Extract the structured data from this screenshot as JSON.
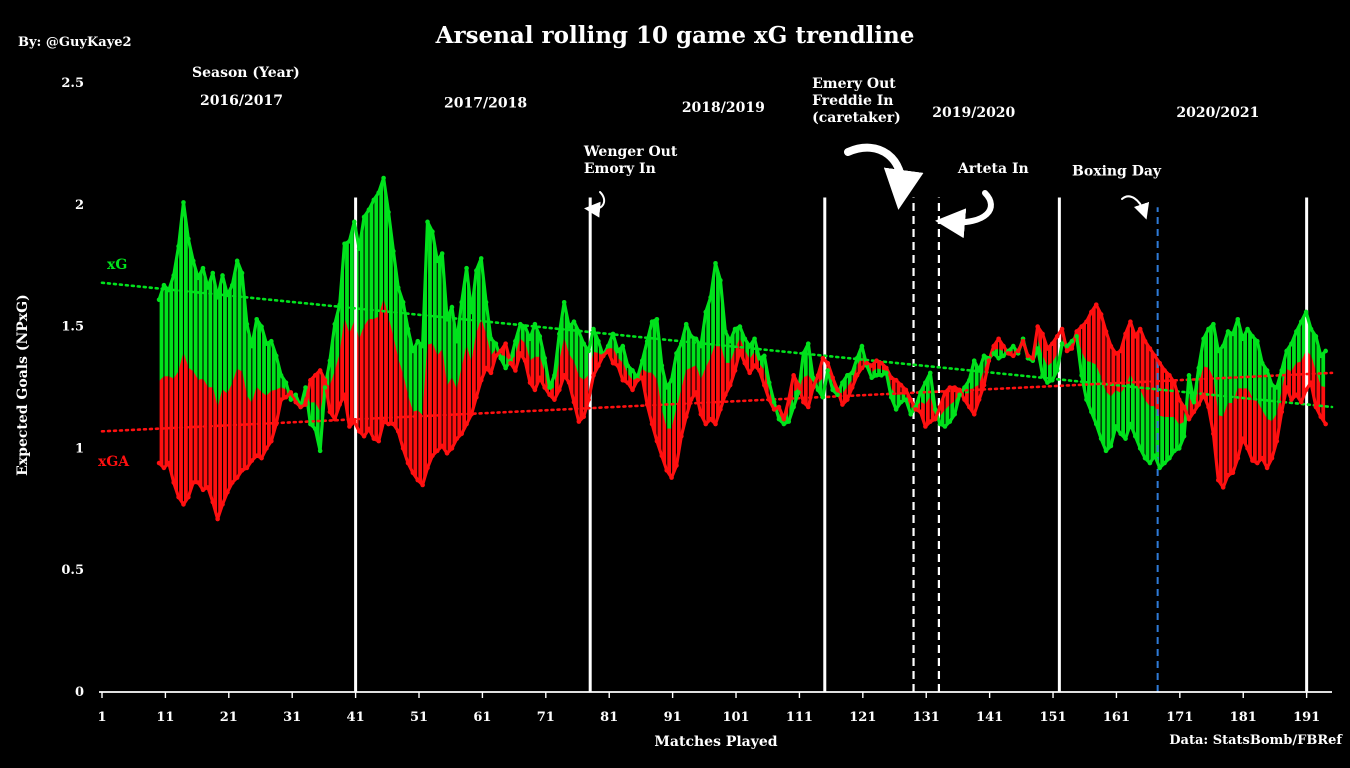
{
  "chart_data": {
    "type": "line",
    "title": "Arsenal rolling 10 game xG trendline",
    "byline": "By: @GuyKaye2",
    "source": "Data: StatsBomb/FBRef",
    "xlabel": "Matches Played",
    "ylabel": "Expected Goals (NPxG)",
    "xlim": [
      1,
      195
    ],
    "ylim": [
      0,
      2.5
    ],
    "x_ticks": [
      1,
      11,
      21,
      31,
      41,
      51,
      61,
      71,
      81,
      91,
      101,
      111,
      121,
      131,
      141,
      151,
      161,
      171,
      181,
      191
    ],
    "y_ticks": [
      "0",
      "0.5",
      "1",
      "1.5",
      "2",
      "2.5"
    ],
    "grid": false,
    "legend": "inline",
    "series_colors": {
      "xG": "#00e21c",
      "xGA": "#ff1010"
    },
    "x_start": 10,
    "series": [
      {
        "name": "xG",
        "values": [
          1.61,
          1.67,
          1.65,
          1.71,
          1.83,
          2.01,
          1.86,
          1.77,
          1.7,
          1.74,
          1.66,
          1.72,
          1.62,
          1.71,
          1.63,
          1.67,
          1.77,
          1.72,
          1.51,
          1.42,
          1.53,
          1.5,
          1.43,
          1.44,
          1.38,
          1.3,
          1.27,
          1.2,
          1.22,
          1.17,
          1.25,
          1.1,
          1.08,
          0.99,
          1.25,
          1.36,
          1.51,
          1.59,
          1.84,
          1.85,
          1.93,
          1.82,
          1.95,
          1.98,
          2.02,
          2.05,
          2.11,
          1.97,
          1.81,
          1.66,
          1.6,
          1.49,
          1.4,
          1.44,
          1.42,
          1.93,
          1.89,
          1.77,
          1.8,
          1.53,
          1.58,
          1.44,
          1.6,
          1.74,
          1.56,
          1.73,
          1.78,
          1.6,
          1.45,
          1.43,
          1.37,
          1.33,
          1.36,
          1.44,
          1.51,
          1.5,
          1.45,
          1.51,
          1.46,
          1.37,
          1.25,
          1.3,
          1.47,
          1.6,
          1.5,
          1.52,
          1.48,
          1.43,
          1.4,
          1.49,
          1.44,
          1.38,
          1.42,
          1.47,
          1.4,
          1.42,
          1.34,
          1.32,
          1.29,
          1.36,
          1.44,
          1.52,
          1.53,
          1.34,
          1.25,
          1.28,
          1.39,
          1.43,
          1.51,
          1.46,
          1.45,
          1.42,
          1.56,
          1.62,
          1.76,
          1.69,
          1.48,
          1.44,
          1.49,
          1.5,
          1.45,
          1.42,
          1.45,
          1.37,
          1.38,
          1.27,
          1.19,
          1.12,
          1.1,
          1.11,
          1.17,
          1.23,
          1.39,
          1.43,
          1.29,
          1.24,
          1.21,
          1.32,
          1.24,
          1.22,
          1.27,
          1.3,
          1.31,
          1.37,
          1.42,
          1.34,
          1.29,
          1.3,
          1.3,
          1.31,
          1.21,
          1.16,
          1.19,
          1.2,
          1.14,
          1.17,
          1.23,
          1.27,
          1.31,
          1.16,
          1.1,
          1.09,
          1.11,
          1.14,
          1.22,
          1.25,
          1.28,
          1.36,
          1.32,
          1.38,
          1.37,
          1.39,
          1.37,
          1.38,
          1.4,
          1.42,
          1.39,
          1.45,
          1.37,
          1.36,
          1.41,
          1.3,
          1.27,
          1.28,
          1.32,
          1.43,
          1.42,
          1.44,
          1.46,
          1.3,
          1.2,
          1.15,
          1.1,
          1.04,
          0.99,
          1.01,
          1.09,
          1.06,
          1.04,
          1.1,
          1.05,
          1.0,
          0.96,
          0.94,
          0.97,
          0.92,
          0.94,
          0.96,
          0.99,
          1.0,
          1.05,
          1.3,
          1.19,
          1.33,
          1.45,
          1.49,
          1.51,
          1.4,
          1.42,
          1.48,
          1.47,
          1.53,
          1.45,
          1.49,
          1.46,
          1.44,
          1.35,
          1.32,
          1.26,
          1.25,
          1.32,
          1.4,
          1.43,
          1.48,
          1.52,
          1.56,
          1.49,
          1.46,
          1.38,
          1.4
        ]
      },
      {
        "name": "xGA",
        "values": [
          0.94,
          0.92,
          0.94,
          0.86,
          0.8,
          0.77,
          0.8,
          0.86,
          0.86,
          0.83,
          0.84,
          0.78,
          0.71,
          0.77,
          0.82,
          0.86,
          0.88,
          0.91,
          0.92,
          0.95,
          0.97,
          0.96,
          1.0,
          1.03,
          1.1,
          1.2,
          1.21,
          1.23,
          1.19,
          1.17,
          1.18,
          1.28,
          1.3,
          1.32,
          1.28,
          1.15,
          1.12,
          1.18,
          1.22,
          1.09,
          1.11,
          1.07,
          1.05,
          1.08,
          1.04,
          1.03,
          1.11,
          1.1,
          1.1,
          1.07,
          1.0,
          0.94,
          0.9,
          0.87,
          0.85,
          0.92,
          0.97,
          0.99,
          1.01,
          0.98,
          1.0,
          1.04,
          1.06,
          1.1,
          1.14,
          1.21,
          1.28,
          1.33,
          1.31,
          1.38,
          1.4,
          1.43,
          1.35,
          1.32,
          1.39,
          1.36,
          1.27,
          1.24,
          1.29,
          1.25,
          1.22,
          1.2,
          1.24,
          1.3,
          1.27,
          1.19,
          1.11,
          1.13,
          1.2,
          1.3,
          1.34,
          1.38,
          1.4,
          1.35,
          1.34,
          1.28,
          1.27,
          1.24,
          1.28,
          1.29,
          1.18,
          1.1,
          1.03,
          0.97,
          0.91,
          0.88,
          0.93,
          1.05,
          1.13,
          1.2,
          1.23,
          1.14,
          1.1,
          1.12,
          1.1,
          1.16,
          1.22,
          1.26,
          1.32,
          1.4,
          1.35,
          1.31,
          1.34,
          1.32,
          1.26,
          1.2,
          1.16,
          1.17,
          1.12,
          1.2,
          1.3,
          1.26,
          1.19,
          1.17,
          1.25,
          1.3,
          1.37,
          1.35,
          1.29,
          1.24,
          1.18,
          1.2,
          1.25,
          1.3,
          1.33,
          1.35,
          1.34,
          1.36,
          1.35,
          1.33,
          1.29,
          1.28,
          1.26,
          1.24,
          1.2,
          1.16,
          1.15,
          1.09,
          1.11,
          1.12,
          1.17,
          1.23,
          1.25,
          1.25,
          1.24,
          1.2,
          1.17,
          1.14,
          1.2,
          1.26,
          1.36,
          1.42,
          1.45,
          1.42,
          1.39,
          1.38,
          1.4,
          1.44,
          1.38,
          1.37,
          1.5,
          1.47,
          1.41,
          1.43,
          1.46,
          1.49,
          1.4,
          1.41,
          1.48,
          1.5,
          1.52,
          1.56,
          1.59,
          1.55,
          1.48,
          1.42,
          1.39,
          1.4,
          1.47,
          1.52,
          1.46,
          1.49,
          1.44,
          1.41,
          1.38,
          1.35,
          1.32,
          1.3,
          1.27,
          1.2,
          1.17,
          1.12,
          1.15,
          1.18,
          1.22,
          1.17,
          1.06,
          0.87,
          0.84,
          0.89,
          0.9,
          0.96,
          1.04,
          1.0,
          0.95,
          0.94,
          0.96,
          0.92,
          0.96,
          1.03,
          1.15,
          1.25,
          1.2,
          1.22,
          1.19,
          1.24,
          1.27,
          1.17,
          1.13,
          1.1,
          1.17,
          1.22,
          1.13,
          1.1
        ]
      }
    ],
    "trendlines": [
      {
        "series": "xG",
        "from": [
          1,
          1.68
        ],
        "to": [
          195,
          1.17
        ]
      },
      {
        "series": "xGA",
        "from": [
          1,
          1.07
        ],
        "to": [
          195,
          1.31
        ]
      }
    ],
    "inline_labels": {
      "xG": "xG",
      "xGA": "xGA"
    },
    "season_header": "Season (Year)",
    "seasons": [
      {
        "label": "2016/2017",
        "x": 23,
        "y": 2.41
      },
      {
        "label": "2017/2018",
        "x": 61.5,
        "y": 2.4
      },
      {
        "label": "2018/2019",
        "x": 99,
        "y": 2.38
      },
      {
        "label": "2019/2020",
        "x": 138.5,
        "y": 2.36
      },
      {
        "label": "2020/2021",
        "x": 177,
        "y": 2.36
      }
    ],
    "dividers": [
      {
        "x": 41,
        "style": "solid"
      },
      {
        "x": 78,
        "style": "solid"
      },
      {
        "x": 115,
        "style": "solid"
      },
      {
        "x": 129,
        "style": "dashed"
      },
      {
        "x": 133,
        "style": "dashed"
      },
      {
        "x": 152,
        "style": "solid"
      },
      {
        "x": 167.5,
        "style": "dashed-blue"
      },
      {
        "x": 191,
        "style": "solid"
      }
    ],
    "annotations": [
      {
        "lines": [
          "Wenger Out",
          "Emory In"
        ],
        "x": 77,
        "y": 2.2
      },
      {
        "lines": [
          "Emery Out",
          "Freddie In",
          "(caretaker)"
        ],
        "x": 113,
        "y": 2.48
      },
      {
        "lines": [
          "Arteta In"
        ],
        "x": 136,
        "y": 2.13
      },
      {
        "lines": [
          "Boxing Day"
        ],
        "x": 154,
        "y": 2.12
      }
    ]
  }
}
